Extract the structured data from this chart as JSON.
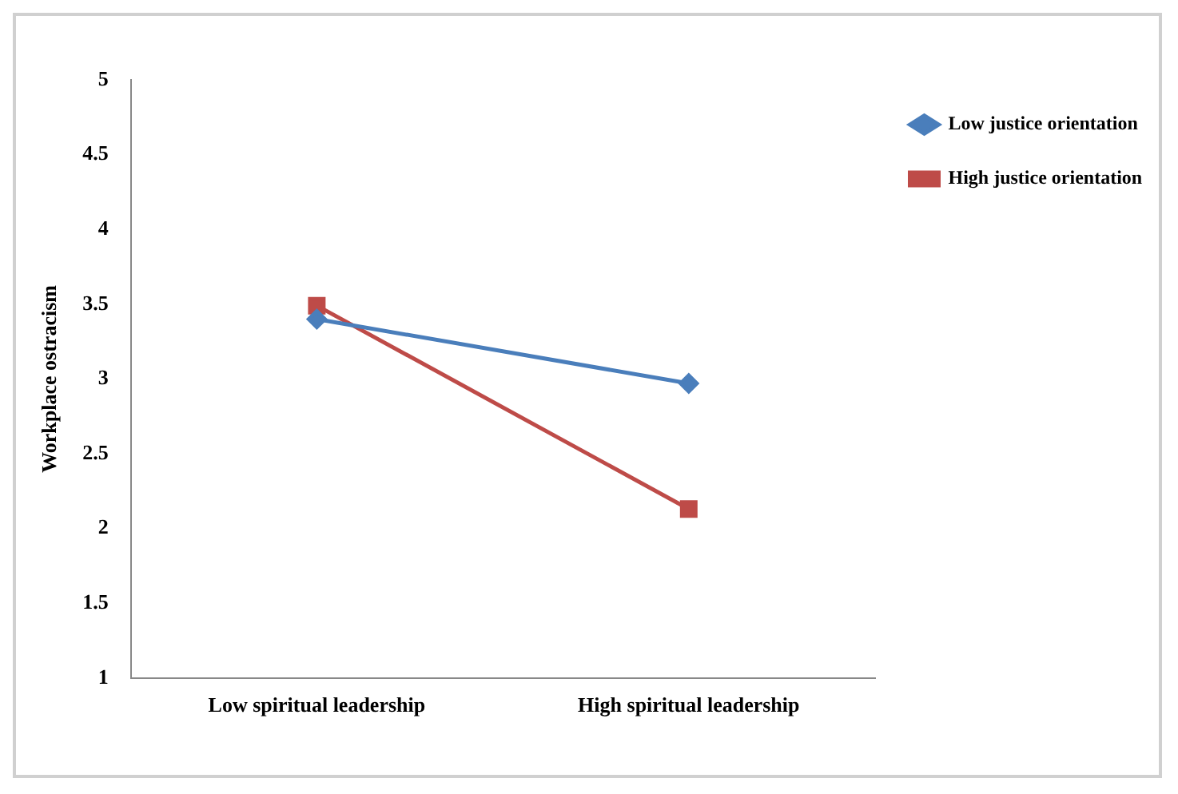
{
  "chart_data": {
    "type": "line",
    "ylabel": "Workplace ostracism",
    "categories": [
      "Low spiritual leadership",
      "High spiritual leadership"
    ],
    "series": [
      {
        "name": "Low justice orientation",
        "color": "#4a7ebb",
        "marker": "diamond",
        "values": [
          3.4,
          2.97
        ]
      },
      {
        "name": "High justice orientation",
        "color": "#be4b48",
        "marker": "square",
        "values": [
          3.49,
          2.13
        ]
      }
    ],
    "ylim": [
      1,
      5
    ],
    "yticks": [
      1,
      1.5,
      2,
      2.5,
      3,
      3.5,
      4,
      4.5,
      5
    ],
    "grid": false,
    "legend": "right"
  }
}
